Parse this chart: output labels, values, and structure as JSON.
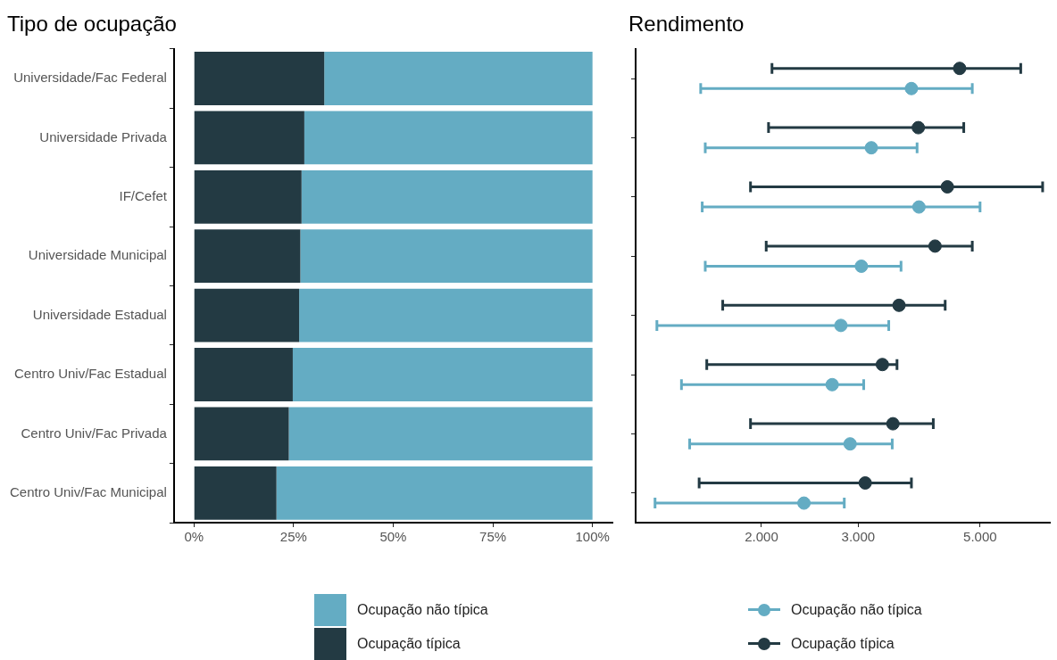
{
  "chart_data": [
    {
      "type": "bar",
      "title": "Tipo de ocupação",
      "orientation": "horizontal",
      "stacked": true,
      "categories": [
        "Universidade/Fac Federal",
        "Universidade Privada",
        "IF/Cefet",
        "Universidade Municipal",
        "Universidade Estadual",
        "Centro Univ/Fac Estadual",
        "Centro Univ/Fac Privada",
        "Centro Univ/Fac Municipal"
      ],
      "series": [
        {
          "name": "Ocupação típica",
          "color": "#233a43",
          "values": [
            32.7,
            27.7,
            27.0,
            26.7,
            26.4,
            24.8,
            23.8,
            20.7
          ]
        },
        {
          "name": "Ocupação não típica",
          "color": "#64acc3",
          "values": [
            67.3,
            72.3,
            73.0,
            73.3,
            73.6,
            75.2,
            76.2,
            79.3
          ]
        }
      ],
      "xlim": [
        -5,
        105
      ],
      "xticks": [
        {
          "value": 0,
          "label": "0%"
        },
        {
          "value": 25,
          "label": "25%"
        },
        {
          "value": 50,
          "label": "50%"
        },
        {
          "value": 75,
          "label": "75%"
        },
        {
          "value": 100,
          "label": "100%"
        }
      ],
      "grid": false,
      "legend": "bottom"
    },
    {
      "type": "scatter",
      "title": "Rendimento",
      "orientation": "horizontal",
      "log": "x",
      "categories": [
        null,
        null,
        null,
        null,
        null,
        null,
        null,
        null
      ],
      "series": [
        {
          "name": "Ocupação não típica",
          "color": "#64acc3",
          "values": [
            3750,
            3170,
            3870,
            3040,
            2790,
            2690,
            2900,
            2390
          ],
          "errors": [
            [
              1550,
              4840
            ],
            [
              1580,
              3840
            ],
            [
              1560,
              5000
            ],
            [
              1580,
              3590
            ],
            [
              1290,
              3410
            ],
            [
              1430,
              3070
            ],
            [
              1480,
              3460
            ],
            [
              1280,
              2830
            ]
          ]
        },
        {
          "name": "Ocupação típica",
          "color": "#233a43",
          "values": [
            4590,
            3860,
            4360,
            4140,
            3560,
            3320,
            3470,
            3090
          ],
          "errors": [
            [
              2090,
              5930
            ],
            [
              2060,
              4670
            ],
            [
              1910,
              6500
            ],
            [
              2040,
              4840
            ],
            [
              1700,
              4320
            ],
            [
              1590,
              3530
            ],
            [
              1910,
              4110
            ],
            [
              1540,
              3750
            ]
          ]
        }
      ],
      "xlim": [
        1180,
        6700
      ],
      "xticks": [
        {
          "value": 2000,
          "label": "2.000"
        },
        {
          "value": 3000,
          "label": "3.000"
        },
        {
          "value": 5000,
          "label": "5.000"
        }
      ],
      "tick_labels": "x",
      "grid": false,
      "legend": "bottom",
      "marker": "circle"
    }
  ]
}
